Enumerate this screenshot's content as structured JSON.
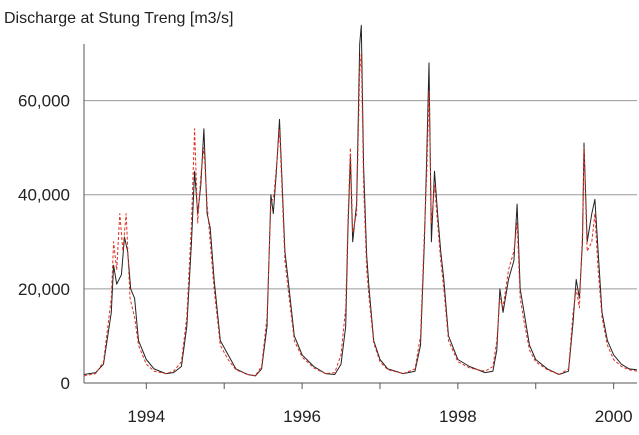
{
  "chart_data": {
    "type": "line",
    "title": "Discharge at Stung Treng [m3/s]",
    "xlabel": "",
    "ylabel": "",
    "xlim": [
      1993.2,
      2000.3
    ],
    "ylim": [
      0,
      75000
    ],
    "y_ticks": [
      0,
      20000,
      40000,
      60000
    ],
    "y_tick_labels": [
      "0",
      "20,000",
      "40,000",
      "60,000"
    ],
    "x_ticks": [
      1994,
      1995,
      1996,
      1997,
      1998,
      1999,
      2000
    ],
    "x_tick_labels": [
      "1994",
      "",
      "1996",
      "",
      "1998",
      "",
      "2000"
    ],
    "grid": "horizontal",
    "legend": "none",
    "series": [
      {
        "color": "#222222",
        "style": "solid",
        "points": [
          [
            1993.2,
            1800
          ],
          [
            1993.35,
            2200
          ],
          [
            1993.45,
            4000
          ],
          [
            1993.55,
            15000
          ],
          [
            1993.58,
            25000
          ],
          [
            1993.62,
            21000
          ],
          [
            1993.68,
            23000
          ],
          [
            1993.72,
            31000
          ],
          [
            1993.76,
            28000
          ],
          [
            1993.8,
            20000
          ],
          [
            1993.85,
            18000
          ],
          [
            1993.9,
            9000
          ],
          [
            1994.0,
            5000
          ],
          [
            1994.1,
            3000
          ],
          [
            1994.25,
            2000
          ],
          [
            1994.35,
            2200
          ],
          [
            1994.45,
            3500
          ],
          [
            1994.52,
            12000
          ],
          [
            1994.58,
            30000
          ],
          [
            1994.62,
            45000
          ],
          [
            1994.66,
            36000
          ],
          [
            1994.7,
            42000
          ],
          [
            1994.74,
            54000
          ],
          [
            1994.78,
            36000
          ],
          [
            1994.82,
            33000
          ],
          [
            1994.87,
            22000
          ],
          [
            1994.95,
            9000
          ],
          [
            1995.05,
            6000
          ],
          [
            1995.15,
            3000
          ],
          [
            1995.3,
            1800
          ],
          [
            1995.4,
            1500
          ],
          [
            1995.48,
            3000
          ],
          [
            1995.55,
            12000
          ],
          [
            1995.6,
            40000
          ],
          [
            1995.63,
            36000
          ],
          [
            1995.67,
            45000
          ],
          [
            1995.71,
            56000
          ],
          [
            1995.75,
            40000
          ],
          [
            1995.78,
            28000
          ],
          [
            1995.82,
            22000
          ],
          [
            1995.9,
            10000
          ],
          [
            1996.0,
            6000
          ],
          [
            1996.15,
            3500
          ],
          [
            1996.3,
            2000
          ],
          [
            1996.42,
            1800
          ],
          [
            1996.5,
            4000
          ],
          [
            1996.56,
            12000
          ],
          [
            1996.59,
            33000
          ],
          [
            1996.62,
            48000
          ],
          [
            1996.65,
            30000
          ],
          [
            1996.7,
            38000
          ],
          [
            1996.74,
            72000
          ],
          [
            1996.76,
            76000
          ],
          [
            1996.79,
            46000
          ],
          [
            1996.83,
            27000
          ],
          [
            1996.86,
            20000
          ],
          [
            1996.92,
            9000
          ],
          [
            1997.0,
            5000
          ],
          [
            1997.1,
            3000
          ],
          [
            1997.3,
            2000
          ],
          [
            1997.45,
            2500
          ],
          [
            1997.52,
            8000
          ],
          [
            1997.57,
            30000
          ],
          [
            1997.6,
            48000
          ],
          [
            1997.63,
            68000
          ],
          [
            1997.66,
            30000
          ],
          [
            1997.7,
            45000
          ],
          [
            1997.74,
            36000
          ],
          [
            1997.78,
            28000
          ],
          [
            1997.82,
            22000
          ],
          [
            1997.88,
            10000
          ],
          [
            1998.0,
            5000
          ],
          [
            1998.15,
            3500
          ],
          [
            1998.35,
            2200
          ],
          [
            1998.45,
            2500
          ],
          [
            1998.5,
            7000
          ],
          [
            1998.54,
            20000
          ],
          [
            1998.58,
            15000
          ],
          [
            1998.65,
            22000
          ],
          [
            1998.72,
            26000
          ],
          [
            1998.76,
            38000
          ],
          [
            1998.8,
            20000
          ],
          [
            1998.85,
            15000
          ],
          [
            1998.92,
            8000
          ],
          [
            1999.0,
            5000
          ],
          [
            1999.15,
            3000
          ],
          [
            1999.3,
            1800
          ],
          [
            1999.42,
            2500
          ],
          [
            1999.48,
            13000
          ],
          [
            1999.52,
            22000
          ],
          [
            1999.56,
            18000
          ],
          [
            1999.6,
            30000
          ],
          [
            1999.62,
            51000
          ],
          [
            1999.66,
            30000
          ],
          [
            1999.72,
            36000
          ],
          [
            1999.76,
            39000
          ],
          [
            1999.8,
            28000
          ],
          [
            1999.85,
            15000
          ],
          [
            1999.92,
            9000
          ],
          [
            2000.0,
            6000
          ],
          [
            2000.1,
            4000
          ],
          [
            2000.2,
            3000
          ],
          [
            2000.3,
            2800
          ]
        ]
      },
      {
        "color": "#e03020",
        "style": "dashed",
        "points": [
          [
            1993.2,
            1500
          ],
          [
            1993.35,
            2000
          ],
          [
            1993.45,
            4500
          ],
          [
            1993.55,
            18000
          ],
          [
            1993.58,
            30000
          ],
          [
            1993.62,
            24000
          ],
          [
            1993.66,
            36000
          ],
          [
            1993.7,
            28000
          ],
          [
            1993.74,
            36000
          ],
          [
            1993.79,
            18000
          ],
          [
            1993.85,
            14000
          ],
          [
            1993.9,
            8000
          ],
          [
            1994.0,
            4000
          ],
          [
            1994.1,
            2500
          ],
          [
            1994.25,
            2000
          ],
          [
            1994.35,
            2500
          ],
          [
            1994.45,
            4500
          ],
          [
            1994.52,
            14000
          ],
          [
            1994.58,
            34000
          ],
          [
            1994.62,
            54000
          ],
          [
            1994.66,
            34000
          ],
          [
            1994.7,
            44000
          ],
          [
            1994.74,
            50000
          ],
          [
            1994.78,
            38000
          ],
          [
            1994.82,
            30000
          ],
          [
            1994.87,
            20000
          ],
          [
            1994.95,
            8000
          ],
          [
            1995.05,
            5000
          ],
          [
            1995.15,
            2800
          ],
          [
            1995.3,
            1800
          ],
          [
            1995.4,
            1600
          ],
          [
            1995.48,
            3500
          ],
          [
            1995.55,
            14000
          ],
          [
            1995.6,
            38000
          ],
          [
            1995.64,
            40000
          ],
          [
            1995.68,
            48000
          ],
          [
            1995.71,
            54000
          ],
          [
            1995.75,
            38000
          ],
          [
            1995.78,
            26000
          ],
          [
            1995.82,
            20000
          ],
          [
            1995.9,
            9000
          ],
          [
            1996.0,
            5500
          ],
          [
            1996.15,
            3200
          ],
          [
            1996.3,
            2000
          ],
          [
            1996.42,
            2200
          ],
          [
            1996.5,
            6000
          ],
          [
            1996.56,
            16000
          ],
          [
            1996.59,
            35000
          ],
          [
            1996.62,
            50000
          ],
          [
            1996.65,
            32000
          ],
          [
            1996.7,
            36000
          ],
          [
            1996.74,
            66000
          ],
          [
            1996.76,
            70000
          ],
          [
            1996.79,
            42000
          ],
          [
            1996.83,
            24000
          ],
          [
            1996.86,
            18000
          ],
          [
            1996.92,
            8500
          ],
          [
            1997.0,
            4500
          ],
          [
            1997.1,
            2800
          ],
          [
            1997.3,
            2000
          ],
          [
            1997.45,
            3000
          ],
          [
            1997.52,
            10000
          ],
          [
            1997.57,
            32000
          ],
          [
            1997.6,
            44000
          ],
          [
            1997.63,
            62000
          ],
          [
            1997.66,
            34000
          ],
          [
            1997.7,
            42000
          ],
          [
            1997.74,
            34000
          ],
          [
            1997.78,
            26000
          ],
          [
            1997.82,
            20000
          ],
          [
            1997.88,
            9000
          ],
          [
            1998.0,
            4500
          ],
          [
            1998.15,
            3200
          ],
          [
            1998.35,
            2500
          ],
          [
            1998.45,
            3500
          ],
          [
            1998.5,
            9000
          ],
          [
            1998.54,
            18000
          ],
          [
            1998.58,
            16000
          ],
          [
            1998.65,
            24000
          ],
          [
            1998.72,
            28000
          ],
          [
            1998.76,
            34000
          ],
          [
            1998.8,
            18000
          ],
          [
            1998.85,
            13000
          ],
          [
            1998.92,
            7000
          ],
          [
            1999.0,
            4500
          ],
          [
            1999.15,
            2800
          ],
          [
            1999.3,
            1800
          ],
          [
            1999.42,
            3000
          ],
          [
            1999.48,
            15000
          ],
          [
            1999.52,
            20000
          ],
          [
            1999.56,
            16000
          ],
          [
            1999.6,
            32000
          ],
          [
            1999.62,
            50000
          ],
          [
            1999.66,
            28000
          ],
          [
            1999.72,
            30000
          ],
          [
            1999.76,
            36000
          ],
          [
            1999.8,
            24000
          ],
          [
            1999.85,
            14000
          ],
          [
            1999.92,
            8000
          ],
          [
            2000.0,
            5000
          ],
          [
            2000.1,
            3500
          ],
          [
            2000.2,
            2800
          ],
          [
            2000.3,
            2500
          ]
        ]
      }
    ]
  }
}
